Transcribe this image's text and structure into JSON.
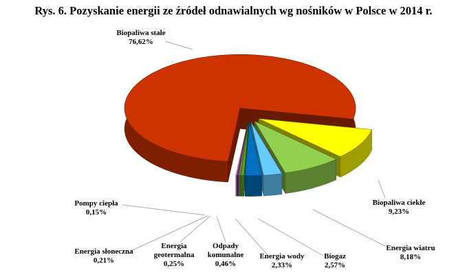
{
  "chart_data": {
    "type": "pie",
    "title": "Rys. 6. Pozyskanie energii ze źródeł odnawialnych wg nośników w Polsce w 2014 r.",
    "categories": [
      "Biopaliwa stałe",
      "Biopaliwa ciekłe",
      "Energia wiatru",
      "Biogaz",
      "Energia wody",
      "Odpady komunalne",
      "Energia geotermalna",
      "Energia słoneczna",
      "Pompy ciepła"
    ],
    "values": [
      76.62,
      9.23,
      8.18,
      2.57,
      2.33,
      0.46,
      0.25,
      0.21,
      0.15
    ],
    "value_labels": [
      "76,62%",
      "9,23%",
      "8,18%",
      "2,57%",
      "2,33%",
      "0,46%",
      "0,25%",
      "0,21%",
      "0,15%"
    ],
    "colors": [
      "#cc3300",
      "#ffff00",
      "#92d050",
      "#66ccff",
      "#0070c0",
      "#5aa02c",
      "#77933c",
      "#7030a0",
      "#ff99cc"
    ]
  }
}
